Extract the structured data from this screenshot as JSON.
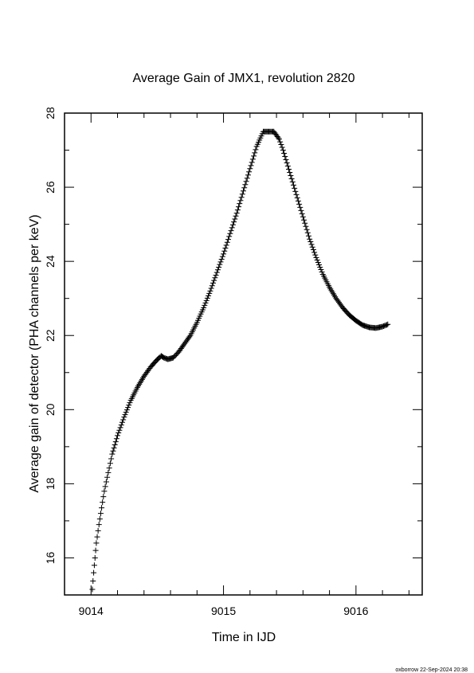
{
  "footer_note": "oxborrow 22-Sep-2024 20:38",
  "chart_data": {
    "type": "scatter",
    "marker": "plus",
    "title": "Average Gain of JMX1, revolution 2820",
    "xlabel": "Time in IJD",
    "ylabel": "Average gain of detector (PHA channels per keV)",
    "xlim": [
      9013.8,
      9016.5
    ],
    "ylim": [
      15,
      28
    ],
    "xticks": [
      9014,
      9015,
      9016
    ],
    "yticks": [
      16,
      18,
      20,
      22,
      24,
      26,
      28
    ],
    "xtick_labels": [
      "9014",
      "9015",
      "9016"
    ],
    "ytick_labels": [
      "16",
      "18",
      "20",
      "22",
      "24",
      "26",
      "28"
    ],
    "grid": false,
    "series": [
      {
        "x": [
          9014.01,
          9014.02,
          9014.03,
          9014.04,
          9014.06,
          9014.08,
          9014.1,
          9014.13,
          9014.16,
          9014.2,
          9014.25,
          9014.3,
          9014.35,
          9014.4,
          9014.45,
          9014.5,
          9014.53,
          9014.55,
          9014.58,
          9014.62,
          9014.66,
          9014.7,
          9014.75,
          9014.8,
          9014.85,
          9014.9,
          9014.95,
          9015.0,
          9015.05,
          9015.1,
          9015.15,
          9015.2,
          9015.25,
          9015.3,
          9015.35,
          9015.38,
          9015.42,
          9015.45,
          9015.5,
          9015.55,
          9015.6,
          9015.65,
          9015.7,
          9015.75,
          9015.8,
          9015.85,
          9015.9,
          9015.95,
          9016.0,
          9016.05,
          9016.1,
          9016.15,
          9016.2,
          9016.24
        ],
        "y": [
          15.15,
          15.6,
          16.0,
          16.4,
          16.9,
          17.35,
          17.8,
          18.3,
          18.8,
          19.3,
          19.8,
          20.25,
          20.6,
          20.9,
          21.15,
          21.35,
          21.45,
          21.4,
          21.36,
          21.4,
          21.55,
          21.75,
          22.0,
          22.35,
          22.75,
          23.2,
          23.7,
          24.2,
          24.75,
          25.3,
          25.9,
          26.5,
          27.1,
          27.5,
          27.5,
          27.5,
          27.3,
          27.0,
          26.4,
          25.8,
          25.2,
          24.6,
          24.1,
          23.65,
          23.3,
          23.0,
          22.75,
          22.55,
          22.4,
          22.28,
          22.22,
          22.2,
          22.24,
          22.3
        ]
      }
    ]
  }
}
